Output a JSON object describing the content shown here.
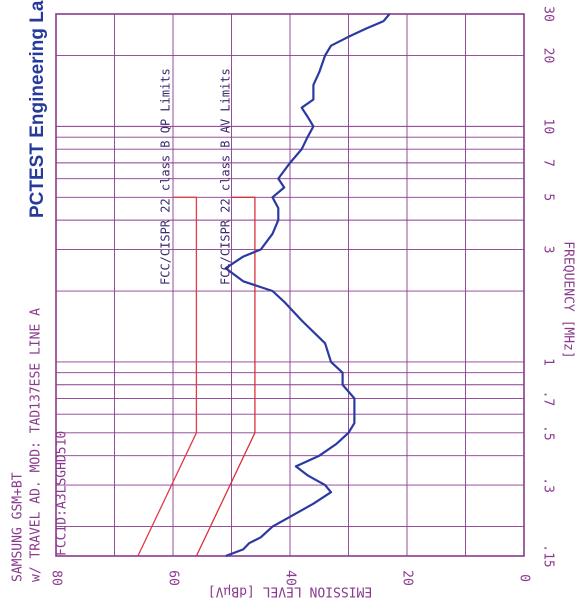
{
  "chart_data": {
    "type": "line",
    "x_axis": {
      "label": "FREQUENCY [MHz]",
      "scale": "log",
      "range": [
        0.15,
        30
      ],
      "tick_values": [
        0.15,
        0.3,
        0.5,
        0.7,
        1,
        3,
        5,
        7,
        10,
        20,
        30
      ],
      "tick_labels": [
        ".15",
        ".3",
        ".5",
        ".7",
        "1",
        "3",
        "5",
        "7",
        "10",
        "20",
        "30"
      ]
    },
    "y_axis": {
      "label": "EMISSION LEVEL [dBμV]",
      "range": [
        0,
        80
      ],
      "tick_values": [
        0,
        20,
        40,
        60,
        80
      ],
      "tick_labels": [
        "0",
        "20",
        "40",
        "60",
        "80"
      ]
    },
    "info_lines": [
      "SAMSUNG GSM+BT",
      "w/ TRAVEL AD. MOD: TAD137ESE  LINE A",
      "FCCID:A3LSGHD510"
    ],
    "lab_name": "PCTEST Engineering Lab.",
    "series": [
      {
        "name": "FCC/CISPR 22 class B QP Limits",
        "color": "#e23a47",
        "points": [
          [
            0.15,
            66
          ],
          [
            0.5,
            56
          ],
          [
            5,
            56
          ],
          [
            5,
            60
          ]
        ]
      },
      {
        "name": "FCC/CISPR 22 class B AV Limits",
        "color": "#d8313c",
        "points": [
          [
            0.15,
            56
          ],
          [
            0.5,
            46
          ],
          [
            5,
            46
          ],
          [
            5,
            50
          ]
        ]
      },
      {
        "name": "",
        "color": "#2a3aa0",
        "points": [
          [
            0.15,
            51
          ],
          [
            0.16,
            48
          ],
          [
            0.17,
            47
          ],
          [
            0.18,
            45
          ],
          [
            0.2,
            43
          ],
          [
            0.22,
            40
          ],
          [
            0.25,
            36
          ],
          [
            0.28,
            33
          ],
          [
            0.3,
            34
          ],
          [
            0.33,
            37
          ],
          [
            0.36,
            39
          ],
          [
            0.4,
            35
          ],
          [
            0.45,
            32
          ],
          [
            0.5,
            30
          ],
          [
            0.55,
            29
          ],
          [
            0.6,
            29
          ],
          [
            0.7,
            29
          ],
          [
            0.8,
            31
          ],
          [
            0.9,
            31
          ],
          [
            1,
            33
          ],
          [
            1.2,
            34
          ],
          [
            1.5,
            38
          ],
          [
            1.8,
            41
          ],
          [
            2,
            43
          ],
          [
            2.2,
            48
          ],
          [
            2.5,
            51
          ],
          [
            2.8,
            48
          ],
          [
            3,
            45
          ],
          [
            3.5,
            43
          ],
          [
            4,
            42
          ],
          [
            4.5,
            42
          ],
          [
            5,
            43
          ],
          [
            5.5,
            41
          ],
          [
            6,
            42
          ],
          [
            7,
            40
          ],
          [
            8,
            38
          ],
          [
            9,
            37
          ],
          [
            10,
            36
          ],
          [
            11,
            37
          ],
          [
            12,
            38
          ],
          [
            13,
            36
          ],
          [
            15,
            36
          ],
          [
            17,
            35
          ],
          [
            20,
            34
          ],
          [
            22,
            33
          ],
          [
            24,
            30
          ],
          [
            26,
            27
          ],
          [
            28,
            24
          ],
          [
            30,
            23
          ]
        ]
      }
    ],
    "grid": true
  }
}
